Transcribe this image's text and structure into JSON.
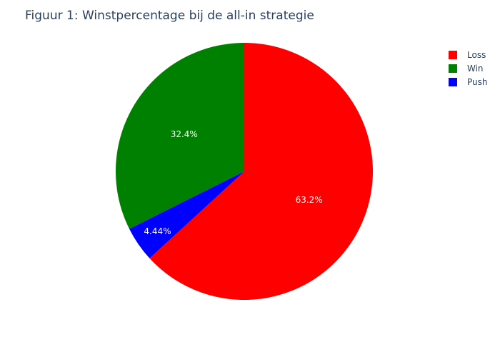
{
  "chart_data": {
    "type": "pie",
    "title": "Figuur 1: Winstpercentage bij de all-in strategie",
    "direction": "clockwise",
    "start": "12 o'clock",
    "legend_position": "top-right",
    "slices": [
      {
        "label": "Loss",
        "value": 63.2,
        "text": "63.2%",
        "color": "#ff0000"
      },
      {
        "label": "Push",
        "value": 4.44,
        "text": "4.44%",
        "color": "#0000ff"
      },
      {
        "label": "Win",
        "value": 32.4,
        "text": "32.4%",
        "color": "#008000"
      }
    ],
    "legend": [
      {
        "label": "Loss",
        "color": "#ff0000"
      },
      {
        "label": "Win",
        "color": "#008000"
      },
      {
        "label": "Push",
        "color": "#0000ff"
      }
    ]
  }
}
